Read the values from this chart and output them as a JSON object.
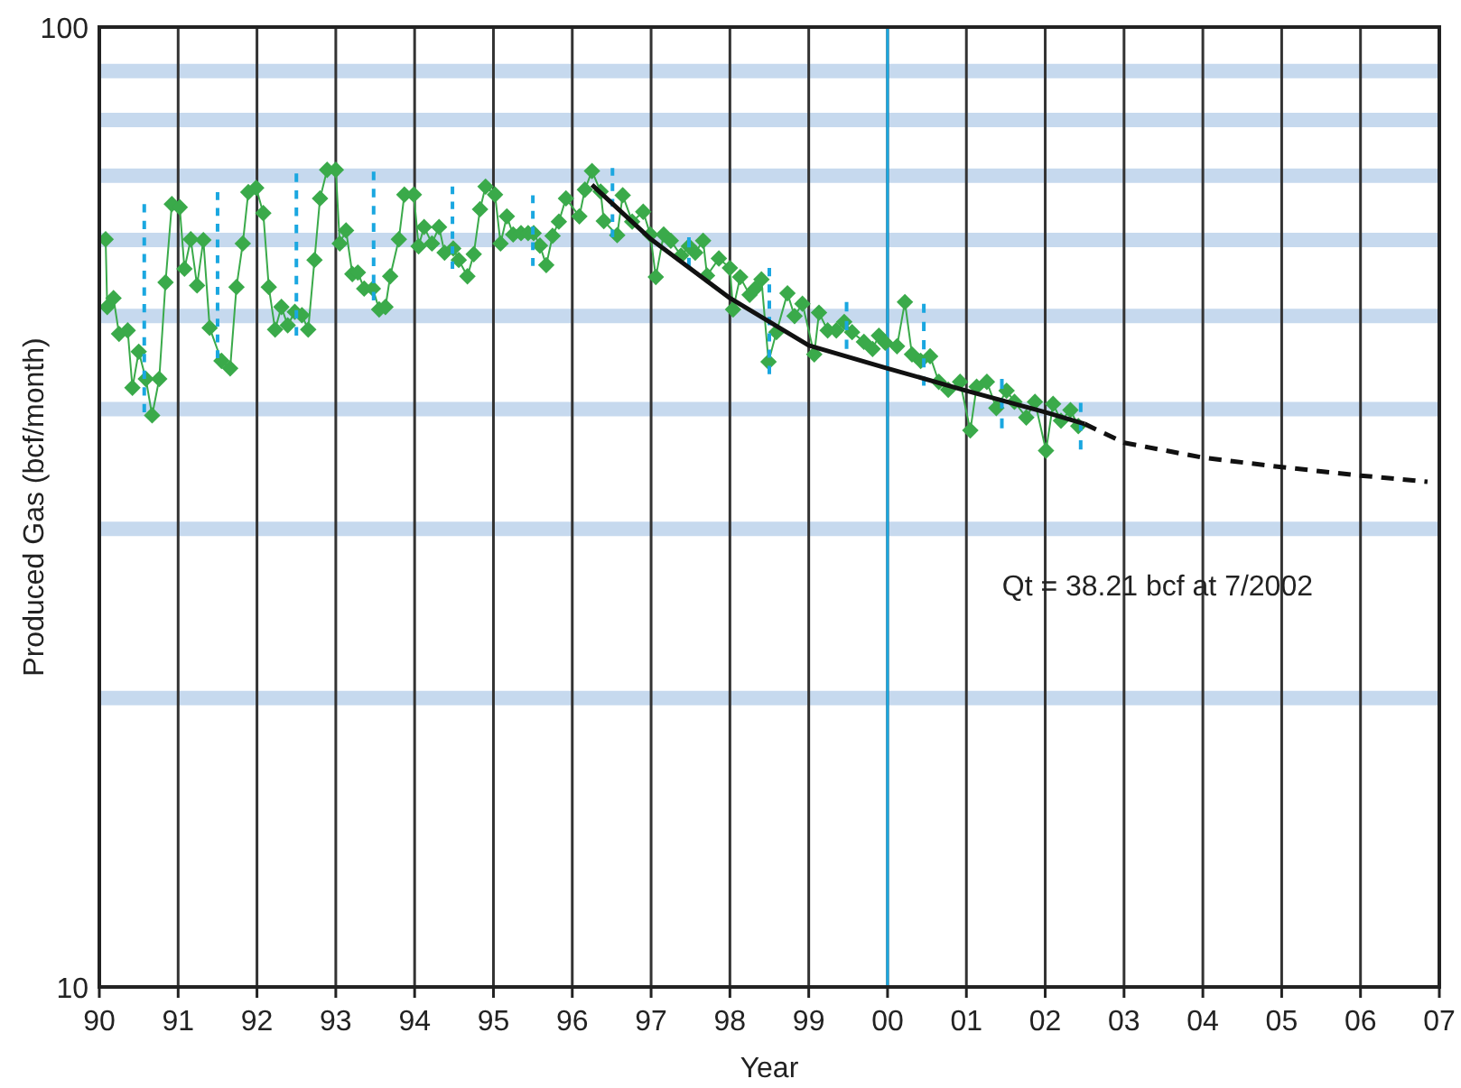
{
  "chart_data": {
    "type": "line",
    "xlabel": "Year",
    "ylabel": "Produced Gas (bcf/month)",
    "log": "y",
    "grid": true,
    "marker": "diamond",
    "xlim": [
      1990,
      2007
    ],
    "ylim": [
      10,
      100
    ],
    "xticks": [
      {
        "value": 1990,
        "label": "90"
      },
      {
        "value": 1991,
        "label": "91"
      },
      {
        "value": 1992,
        "label": "92"
      },
      {
        "value": 1993,
        "label": "93"
      },
      {
        "value": 1994,
        "label": "94"
      },
      {
        "value": 1995,
        "label": "95"
      },
      {
        "value": 1996,
        "label": "96"
      },
      {
        "value": 1997,
        "label": "97"
      },
      {
        "value": 1998,
        "label": "98"
      },
      {
        "value": 1999,
        "label": "99"
      },
      {
        "value": 2000,
        "label": "00"
      },
      {
        "value": 2001,
        "label": "01"
      },
      {
        "value": 2002,
        "label": "02"
      },
      {
        "value": 2003,
        "label": "03"
      },
      {
        "value": 2004,
        "label": "04"
      },
      {
        "value": 2005,
        "label": "05"
      },
      {
        "value": 2006,
        "label": "06"
      },
      {
        "value": 2007,
        "label": "07"
      }
    ],
    "yticks": [
      10,
      {
        "value": 20,
        "label": null
      },
      {
        "value": 30,
        "label": null
      },
      {
        "value": 40,
        "label": null
      },
      {
        "value": 50,
        "label": null
      },
      {
        "value": 60,
        "label": null
      },
      {
        "value": 70,
        "label": null
      },
      {
        "value": 80,
        "label": null
      },
      {
        "value": 90,
        "label": null
      },
      100
    ],
    "ref_lines": [
      {
        "axis": "x",
        "value": 2000,
        "color": "#1aa7e0"
      }
    ],
    "annotations": [
      "Qt = 38.21 bcf at 7/2002"
    ],
    "series": [
      {
        "color": "#3aaa4a",
        "x": [
          1990.08,
          1990.1,
          1990.18,
          1990.25,
          1990.36,
          1990.42,
          1990.5,
          1990.59,
          1990.67,
          1990.76,
          1990.84,
          1990.92,
          1991.02,
          1991.08,
          1991.16,
          1991.24,
          1991.32,
          1991.4,
          1991.55,
          1991.66,
          1991.74,
          1991.82,
          1991.89,
          1991.99,
          1992.08,
          1992.15,
          1992.23,
          1992.31,
          1992.39,
          1992.48,
          1992.57,
          1992.65,
          1992.73,
          1992.8,
          1992.89,
          1993,
          1993.05,
          1993.13,
          1993.21,
          1993.28,
          1993.36,
          1993.47,
          1993.55,
          1993.63,
          1993.69,
          1993.8,
          1993.87,
          1993.99,
          1994.05,
          1994.12,
          1994.22,
          1994.31,
          1994.38,
          1994.49,
          1994.56,
          1994.67,
          1994.75,
          1994.83,
          1994.9,
          1995.02,
          1995.09,
          1995.17,
          1995.25,
          1995.35,
          1995.44,
          1995.51,
          1995.59,
          1995.67,
          1995.75,
          1995.83,
          1995.92,
          1996.09,
          1996.16,
          1996.25,
          1996.36,
          1996.4,
          1996.57,
          1996.64,
          1996.76,
          1996.9,
          1996.99,
          1997.06,
          1997.16,
          1997.25,
          1997.38,
          1997.48,
          1997.56,
          1997.66,
          1997.71,
          1997.86,
          1998,
          1998.04,
          1998.13,
          1998.25,
          1998.32,
          1998.4,
          1998.49,
          1998.59,
          1998.73,
          1998.82,
          1998.92,
          1999.07,
          1999.13,
          1999.24,
          1999.35,
          1999.45,
          1999.55,
          1999.7,
          1999.81,
          1999.89,
          1999.97,
          2000.12,
          2000.22,
          2000.31,
          2000.42,
          2000.54,
          2000.65,
          2000.77,
          2000.92,
          2001.05,
          2001.13,
          2001.26,
          2001.38,
          2001.51,
          2001.61,
          2001.76,
          2001.87,
          2002.01,
          2002.1,
          2002.2,
          2002.32,
          2002.42
        ],
        "values": [
          60.1,
          51.1,
          52.2,
          47.9,
          48.3,
          42.1,
          45.9,
          43,
          39.4,
          43,
          54.2,
          65.4,
          64.9,
          56,
          60.1,
          53.8,
          60,
          48.6,
          44.9,
          44.1,
          53.6,
          59.5,
          67.3,
          68,
          64,
          53.6,
          48.4,
          51.1,
          48.9,
          50.5,
          50.1,
          48.4,
          57.2,
          66.3,
          71,
          71,
          59.5,
          61.4,
          55.3,
          55.5,
          53.4,
          53.4,
          50.8,
          51.1,
          55,
          60.1,
          66.9,
          66.9,
          59.1,
          61.9,
          59.5,
          61.9,
          58.2,
          58.8,
          57.2,
          55,
          58,
          64.6,
          68.2,
          66.9,
          59.5,
          63.5,
          60.8,
          61,
          61,
          61,
          59.2,
          56.5,
          60.6,
          62.7,
          66.3,
          63.5,
          67.7,
          70.8,
          67.4,
          62.8,
          60.7,
          66.8,
          62.7,
          64.2,
          60.8,
          54.9,
          60.8,
          59.9,
          57.8,
          59.1,
          58.2,
          59.9,
          55.1,
          57.4,
          56.1,
          50.8,
          54.9,
          52.6,
          53.4,
          54.6,
          44.8,
          48.1,
          52.8,
          50,
          51.5,
          45.6,
          50.4,
          48.3,
          48.3,
          49.3,
          48.1,
          47,
          46.2,
          47.7,
          46.9,
          46.5,
          51.7,
          45.6,
          44.9,
          45.4,
          42.7,
          41.9,
          42.7,
          38,
          42.2,
          42.7,
          40.1,
          41.8,
          40.7,
          39.2,
          40.7,
          36.2,
          40.5,
          38.9,
          39.9,
          38.4
        ]
      },
      {
        "type": "line",
        "marker": "none",
        "line_style": "dashed",
        "color": "#1aa7e0",
        "x": [
          1990.57,
          1990.57
        ],
        "values": [
          39.7,
          65.4
        ]
      },
      {
        "type": "line",
        "marker": "none",
        "line_style": "dashed",
        "color": "#1aa7e0",
        "x": [
          1991.5,
          1991.5
        ],
        "values": [
          45.2,
          67.3
        ]
      },
      {
        "type": "line",
        "marker": "none",
        "line_style": "dashed",
        "color": "#1aa7e0",
        "x": [
          1992.5,
          1992.5
        ],
        "values": [
          47.7,
          70.4
        ]
      },
      {
        "type": "line",
        "marker": "none",
        "line_style": "dashed",
        "color": "#1aa7e0",
        "x": [
          1993.48,
          1993.48
        ],
        "values": [
          51.9,
          70.7
        ]
      },
      {
        "type": "line",
        "marker": "none",
        "line_style": "dashed",
        "color": "#1aa7e0",
        "x": [
          1994.48,
          1994.48
        ],
        "values": [
          56,
          68.2
        ]
      },
      {
        "type": "line",
        "marker": "none",
        "line_style": "dashed",
        "color": "#1aa7e0",
        "x": [
          1995.5,
          1995.5
        ],
        "values": [
          56.4,
          66.8
        ]
      },
      {
        "type": "line",
        "marker": "none",
        "line_style": "dashed",
        "color": "#1aa7e0",
        "x": [
          1996.51,
          1996.51
        ],
        "values": [
          60.4,
          71.3
        ]
      },
      {
        "type": "line",
        "marker": "none",
        "line_style": "dashed",
        "color": "#1aa7e0",
        "x": [
          1997.48,
          1997.48
        ],
        "values": [
          56.1,
          60.4
        ]
      },
      {
        "type": "line",
        "marker": "none",
        "line_style": "dashed",
        "color": "#1aa7e0",
        "x": [
          1998.5,
          1998.5
        ],
        "values": [
          43.5,
          56.1
        ]
      },
      {
        "type": "line",
        "marker": "none",
        "line_style": "dashed",
        "color": "#1aa7e0",
        "x": [
          1999.48,
          1999.48
        ],
        "values": [
          46.2,
          51.7
        ]
      },
      {
        "type": "line",
        "marker": "none",
        "line_style": "dashed",
        "color": "#1aa7e0",
        "x": [
          2000.46,
          2000.46
        ],
        "values": [
          42.3,
          51.5
        ]
      },
      {
        "type": "line",
        "marker": "none",
        "line_style": "dashed",
        "color": "#1aa7e0",
        "x": [
          2001.45,
          2001.45
        ],
        "values": [
          38.2,
          43
        ]
      },
      {
        "type": "line",
        "marker": "none",
        "line_style": "dashed",
        "color": "#1aa7e0",
        "x": [
          2002.45,
          2002.45
        ],
        "values": [
          36.3,
          40.6
        ]
      },
      {
        "type": "line",
        "marker": "none",
        "line_style": "solid",
        "color": "#111111",
        "x": [
          1996.25,
          1997,
          1998,
          1999,
          2000,
          2001,
          2002,
          2002.5
        ],
        "values": [
          68.5,
          60.1,
          52.2,
          46.6,
          44.1,
          41.8,
          39.7,
          38.6
        ]
      },
      {
        "type": "line",
        "marker": "none",
        "line_style": "dashed",
        "color": "#111111",
        "x": [
          2002.5,
          2003,
          2004,
          2005,
          2006,
          2006.85
        ],
        "values": [
          38.6,
          36.9,
          35.6,
          34.8,
          34.1,
          33.6
        ]
      }
    ]
  }
}
